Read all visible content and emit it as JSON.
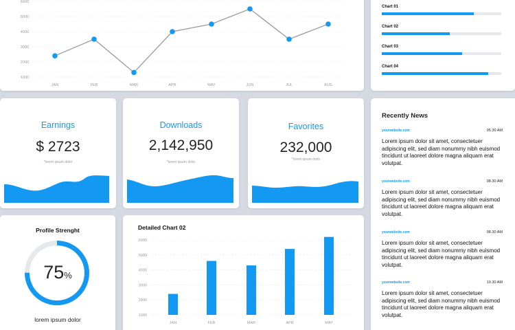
{
  "line_chart": {
    "months": [
      "JAN",
      "FEB",
      "MAR",
      "APR",
      "MAY",
      "JUN",
      "JUL",
      "AUG"
    ],
    "values": [
      2400,
      3500,
      1300,
      4000,
      4500,
      5500,
      3500,
      4500
    ],
    "y_ticks": [
      "6000",
      "5000",
      "4000",
      "3000",
      "2000",
      "1000"
    ],
    "ylim": [
      1000,
      6000
    ],
    "line_color": "#9a9a9a",
    "point_color": "#1499f2"
  },
  "progress": [
    {
      "label": "Chart 01",
      "value": 0.77
    },
    {
      "label": "Chart 02",
      "value": 0.57
    },
    {
      "label": "Chart 03",
      "value": 0.67
    },
    {
      "label": "Chart 04",
      "value": 0.89
    }
  ],
  "stats": [
    {
      "title": "Earnings",
      "value": "$ 2723",
      "subtitle": "*lorem ipsum dolor"
    },
    {
      "title": "Downloads",
      "value": "2,142,950",
      "subtitle": "*lorem ipsum dolor"
    },
    {
      "title": "Favorites",
      "value": "232,000",
      "subtitle": "*lorem ipsum dolor"
    }
  ],
  "profile": {
    "title": "Profile Strenght",
    "percent": 75,
    "percent_value": "75",
    "percent_sign": "%",
    "caption": "lorem ipsum dolor"
  },
  "chart_data": {
    "type": "bar",
    "title": "Detailed Chart 02",
    "categories": [
      "JAN",
      "FEB",
      "MAR",
      "APR",
      "MAY"
    ],
    "values": [
      2400,
      4600,
      4300,
      5400,
      6200
    ],
    "y_ticks": [
      "6000",
      "5000",
      "4000",
      "3000",
      "2000",
      "1000"
    ],
    "ylim": [
      1000,
      6000
    ],
    "grid": true,
    "bar_color": "#1499f2"
  },
  "news": {
    "heading": "Recently News",
    "items": [
      {
        "site": "yourwebsite.com",
        "time": "05.30 AM",
        "text": "Lorem ipsum dolor sit amet, consectetuer adipiscing elit, sed diam nonummy nibh euismod tincidunt ut laoreet dolore magna aliquam erat volutpat."
      },
      {
        "site": "yourwebsite.com",
        "time": "08.30 AM",
        "text": "Lorem ipsum dolor sit amet, consectetuer adipiscing elit, sed diam nonummy nibh euismod tincidunt ut laoreet dolore magna aliquam erat volutpat."
      },
      {
        "site": "yourwebsite.com",
        "time": "08.30 AM",
        "text": "Lorem ipsum dolor sit amet, consectetuer adipiscing elit, sed diam nonummy nibh euismod tincidunt ut laoreet dolore magna aliquam erat volutpat."
      },
      {
        "site": "yourwebsite.com",
        "time": "10.30 AM",
        "text": "Lorem ipsum dolor sit amet, consectetuer adipiscing elit, sed diam nonummy nibh euismod tincidunt ut laoreet dolore magna aliquam erat volutpat."
      }
    ]
  },
  "colors": {
    "accent": "#1499f2",
    "background": "#d4d9e2",
    "track": "#e6e8ec"
  }
}
